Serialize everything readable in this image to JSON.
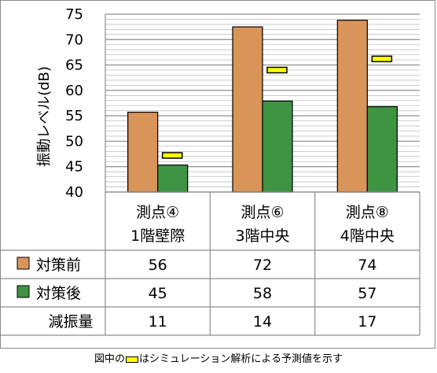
{
  "chart_data": {
    "type": "bar",
    "ylabel": "振動レベル(dB)",
    "ylim": [
      40,
      75
    ],
    "yticks": [
      40,
      45,
      50,
      55,
      60,
      65,
      70,
      75
    ],
    "minor_grid_step": 1,
    "categories": [
      [
        "測点④",
        "1階壁際"
      ],
      [
        "測点⑥",
        "3階中央"
      ],
      [
        "測点⑧",
        "4階中央"
      ]
    ],
    "series": [
      {
        "name": "対策前",
        "values": [
          55.7,
          72.5,
          73.8
        ],
        "color": "#d99459"
      },
      {
        "name": "対策後",
        "values": [
          45.3,
          57.9,
          56.8
        ],
        "color": "#3e9443"
      }
    ],
    "predicted": {
      "values": [
        47.2,
        64.0,
        66.2
      ],
      "color": "#ffff00"
    },
    "table": {
      "rows": [
        {
          "label": "対策前",
          "swatch": "#d99459",
          "values": [
            "56",
            "72",
            "74"
          ]
        },
        {
          "label": "対策後",
          "swatch": "#3e9443",
          "values": [
            "45",
            "58",
            "57"
          ]
        },
        {
          "label": "減振量",
          "swatch": null,
          "values": [
            "11",
            "14",
            "17"
          ]
        }
      ]
    }
  },
  "caption": {
    "before": "図中の",
    "after": "はシミュレーション解析による予測値を示す"
  }
}
